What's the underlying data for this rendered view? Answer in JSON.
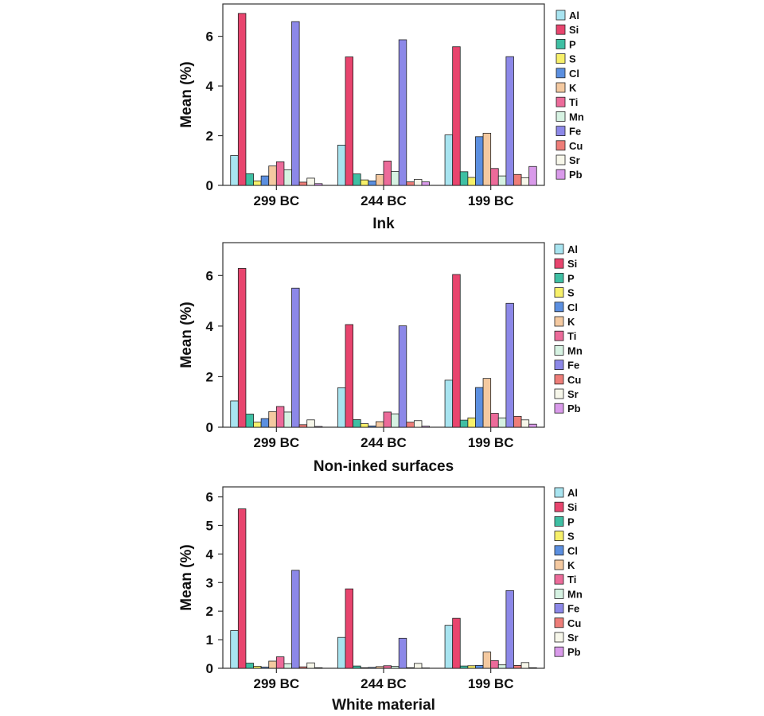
{
  "elements": [
    {
      "name": "Al",
      "color": "#a8e4f0"
    },
    {
      "name": "Si",
      "color": "#e8456e"
    },
    {
      "name": "P",
      "color": "#3fbfa3"
    },
    {
      "name": "S",
      "color": "#f7f06a"
    },
    {
      "name": "Cl",
      "color": "#5b8fe0"
    },
    {
      "name": "K",
      "color": "#f4c9a0"
    },
    {
      "name": "Ti",
      "color": "#ec6b9a"
    },
    {
      "name": "Mn",
      "color": "#d6f2e2"
    },
    {
      "name": "Fe",
      "color": "#8c88e8"
    },
    {
      "name": "Cu",
      "color": "#ee7d78"
    },
    {
      "name": "Sr",
      "color": "#f7f7ea"
    },
    {
      "name": "Pb",
      "color": "#d99aea"
    }
  ],
  "chart_data": [
    {
      "type": "bar",
      "title": "Ink",
      "xlabel": "Ink",
      "ylabel": "Mean (%)",
      "categories": [
        "299 BC",
        "244 BC",
        "199 BC"
      ],
      "ylim": [
        0,
        7.3
      ],
      "yticks": [
        0,
        2,
        4,
        6
      ],
      "legend": "right",
      "series": [
        {
          "name": "Al",
          "values": [
            1.2,
            1.62,
            2.03
          ]
        },
        {
          "name": "Si",
          "values": [
            6.92,
            5.17,
            5.58
          ]
        },
        {
          "name": "P",
          "values": [
            0.47,
            0.46,
            0.55
          ]
        },
        {
          "name": "S",
          "values": [
            0.18,
            0.22,
            0.32
          ]
        },
        {
          "name": "Cl",
          "values": [
            0.38,
            0.18,
            1.96
          ]
        },
        {
          "name": "K",
          "values": [
            0.78,
            0.43,
            2.1
          ]
        },
        {
          "name": "Ti",
          "values": [
            0.95,
            0.98,
            0.68
          ]
        },
        {
          "name": "Mn",
          "values": [
            0.63,
            0.56,
            0.38
          ]
        },
        {
          "name": "Fe",
          "values": [
            6.59,
            5.86,
            5.18
          ]
        },
        {
          "name": "Cu",
          "values": [
            0.13,
            0.14,
            0.44
          ]
        },
        {
          "name": "Sr",
          "values": [
            0.29,
            0.24,
            0.31
          ]
        },
        {
          "name": "Pb",
          "values": [
            0.07,
            0.14,
            0.76
          ]
        }
      ]
    },
    {
      "type": "bar",
      "title": "Non-inked surfaces",
      "xlabel": "Non-inked surfaces",
      "ylabel": "Mean (%)",
      "categories": [
        "299 BC",
        "244 BC",
        "199 BC"
      ],
      "ylim": [
        0,
        7.3
      ],
      "yticks": [
        0,
        2,
        4,
        6
      ],
      "legend": "right",
      "series": [
        {
          "name": "Al",
          "values": [
            1.04,
            1.56,
            1.86
          ]
        },
        {
          "name": "Si",
          "values": [
            6.28,
            4.06,
            6.04
          ]
        },
        {
          "name": "P",
          "values": [
            0.52,
            0.3,
            0.28
          ]
        },
        {
          "name": "S",
          "values": [
            0.2,
            0.14,
            0.37
          ]
        },
        {
          "name": "Cl",
          "values": [
            0.34,
            0.05,
            1.57
          ]
        },
        {
          "name": "K",
          "values": [
            0.62,
            0.22,
            1.93
          ]
        },
        {
          "name": "Ti",
          "values": [
            0.82,
            0.6,
            0.55
          ]
        },
        {
          "name": "Mn",
          "values": [
            0.6,
            0.53,
            0.37
          ]
        },
        {
          "name": "Fe",
          "values": [
            5.5,
            4.01,
            4.9
          ]
        },
        {
          "name": "Cu",
          "values": [
            0.1,
            0.2,
            0.43
          ]
        },
        {
          "name": "Sr",
          "values": [
            0.29,
            0.26,
            0.29
          ]
        },
        {
          "name": "Pb",
          "values": [
            0.03,
            0.04,
            0.12
          ]
        }
      ]
    },
    {
      "type": "bar",
      "title": "White material",
      "xlabel": "White material",
      "ylabel": "Mean (%)",
      "categories": [
        "299 BC",
        "244 BC",
        "199 BC"
      ],
      "ylim": [
        0,
        6.35
      ],
      "yticks": [
        0,
        1,
        2,
        3,
        4,
        5,
        6
      ],
      "legend": "right",
      "series": [
        {
          "name": "Al",
          "values": [
            1.32,
            1.08,
            1.5
          ]
        },
        {
          "name": "Si",
          "values": [
            5.58,
            2.78,
            1.75
          ]
        },
        {
          "name": "P",
          "values": [
            0.18,
            0.08,
            0.08
          ]
        },
        {
          "name": "S",
          "values": [
            0.07,
            0.02,
            0.09
          ]
        },
        {
          "name": "Cl",
          "values": [
            0.04,
            0.03,
            0.1
          ]
        },
        {
          "name": "K",
          "values": [
            0.25,
            0.06,
            0.57
          ]
        },
        {
          "name": "Ti",
          "values": [
            0.4,
            0.09,
            0.27
          ]
        },
        {
          "name": "Mn",
          "values": [
            0.16,
            0.07,
            0.12
          ]
        },
        {
          "name": "Fe",
          "values": [
            3.43,
            1.05,
            2.72
          ]
        },
        {
          "name": "Cu",
          "values": [
            0.05,
            0.02,
            0.1
          ]
        },
        {
          "name": "Sr",
          "values": [
            0.19,
            0.17,
            0.2
          ]
        },
        {
          "name": "Pb",
          "values": [
            0.02,
            0.01,
            0.02
          ]
        }
      ]
    }
  ]
}
